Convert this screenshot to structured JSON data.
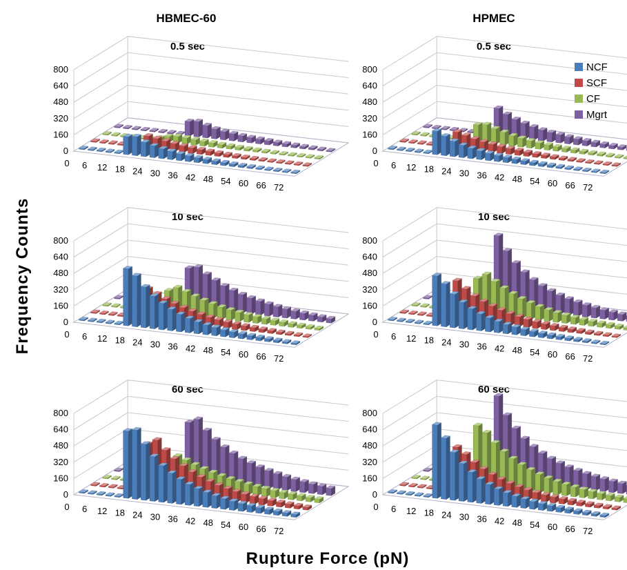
{
  "figure": {
    "column_titles": [
      "HBMEC-60",
      "HPMEC"
    ],
    "y_axis_label": "Frequency  Counts",
    "x_axis_label": "Rupture  Force  (pN)"
  },
  "series_colors": {
    "NCF": "#4a7ebb",
    "SCF": "#be4b48",
    "CF": "#98b954",
    "Mgrt": "#7d60a0"
  },
  "chart_data": [
    {
      "type": "bar",
      "projection": "3d-clustered",
      "title": "0.5 sec",
      "column": "HBMEC-60",
      "xlabel": "Rupture  Force  (pN)",
      "ylabel": "Frequency  Counts",
      "ylim": [
        0,
        800
      ],
      "yticks": [
        0,
        160,
        320,
        480,
        640,
        800
      ],
      "x_tick_labels": [
        "0",
        "6",
        "12",
        "18",
        "24",
        "30",
        "36",
        "42",
        "48",
        "54",
        "60",
        "66",
        "72"
      ],
      "x": [
        0,
        3,
        6,
        9,
        12,
        15,
        18,
        21,
        24,
        27,
        30,
        33,
        36,
        39,
        42,
        45,
        48,
        51,
        54,
        57,
        60,
        63,
        66,
        69,
        72
      ],
      "series": [
        {
          "name": "NCF",
          "values": [
            0,
            0,
            0,
            0,
            0,
            175,
            185,
            140,
            115,
            95,
            80,
            65,
            55,
            45,
            38,
            32,
            27,
            22,
            18,
            15,
            12,
            10,
            8,
            6,
            5
          ]
        },
        {
          "name": "SCF",
          "values": [
            0,
            0,
            0,
            0,
            0,
            0,
            120,
            105,
            90,
            75,
            62,
            52,
            44,
            37,
            31,
            26,
            22,
            18,
            15,
            12,
            10,
            8,
            6,
            5,
            4
          ]
        },
        {
          "name": "CF",
          "values": [
            0,
            0,
            0,
            0,
            0,
            0,
            30,
            55,
            65,
            60,
            52,
            45,
            39,
            33,
            28,
            24,
            20,
            17,
            14,
            12,
            10,
            8,
            6,
            5,
            4
          ]
        },
        {
          "name": "Mgrt",
          "values": [
            0,
            0,
            0,
            0,
            0,
            0,
            0,
            0,
            140,
            150,
            120,
            95,
            80,
            68,
            58,
            50,
            44,
            38,
            32,
            28,
            24,
            20,
            16,
            13,
            10
          ]
        }
      ],
      "legend": "none"
    },
    {
      "type": "bar",
      "projection": "3d-clustered",
      "title": "0.5 sec",
      "column": "HPMEC",
      "xlabel": "Rupture  Force  (pN)",
      "ylabel": "Frequency  Counts",
      "ylim": [
        0,
        800
      ],
      "yticks": [
        0,
        160,
        320,
        480,
        640,
        800
      ],
      "x_tick_labels": [
        "0",
        "6",
        "12",
        "18",
        "24",
        "30",
        "36",
        "42",
        "48",
        "54",
        "60",
        "66",
        "72"
      ],
      "x": [
        0,
        3,
        6,
        9,
        12,
        15,
        18,
        21,
        24,
        27,
        30,
        33,
        36,
        39,
        42,
        45,
        48,
        51,
        54,
        57,
        60,
        63,
        66,
        69,
        72
      ],
      "series": [
        {
          "name": "NCF",
          "values": [
            0,
            0,
            0,
            0,
            0,
            230,
            190,
            150,
            120,
            100,
            85,
            70,
            58,
            48,
            40,
            34,
            28,
            24,
            20,
            16,
            13,
            11,
            9,
            7,
            5
          ]
        },
        {
          "name": "SCF",
          "values": [
            0,
            0,
            0,
            0,
            0,
            0,
            160,
            135,
            110,
            92,
            78,
            65,
            55,
            46,
            38,
            32,
            27,
            22,
            18,
            15,
            12,
            10,
            8,
            6,
            5
          ]
        },
        {
          "name": "CF",
          "values": [
            0,
            0,
            0,
            0,
            0,
            0,
            0,
            170,
            180,
            150,
            125,
            100,
            85,
            70,
            58,
            48,
            40,
            34,
            28,
            23,
            19,
            16,
            13,
            10,
            8
          ]
        },
        {
          "name": "Mgrt",
          "values": [
            0,
            0,
            0,
            0,
            0,
            0,
            0,
            0,
            270,
            220,
            180,
            150,
            125,
            105,
            90,
            78,
            66,
            56,
            48,
            41,
            35,
            30,
            25,
            20,
            16
          ]
        }
      ],
      "legend": "top-right"
    },
    {
      "type": "bar",
      "projection": "3d-clustered",
      "title": "10 sec",
      "column": "HBMEC-60",
      "xlabel": "Rupture  Force  (pN)",
      "ylabel": "Frequency  Counts",
      "ylim": [
        0,
        800
      ],
      "yticks": [
        0,
        160,
        320,
        480,
        640,
        800
      ],
      "x_tick_labels": [
        "0",
        "6",
        "12",
        "18",
        "24",
        "30",
        "36",
        "42",
        "48",
        "54",
        "60",
        "66",
        "72"
      ],
      "x": [
        0,
        3,
        6,
        9,
        12,
        15,
        18,
        21,
        24,
        27,
        30,
        33,
        36,
        39,
        42,
        45,
        48,
        51,
        54,
        57,
        60,
        63,
        66,
        69,
        72
      ],
      "series": [
        {
          "name": "NCF",
          "values": [
            0,
            0,
            0,
            0,
            0,
            560,
            500,
            400,
            320,
            260,
            210,
            170,
            140,
            115,
            95,
            80,
            66,
            55,
            46,
            38,
            31,
            26,
            21,
            17,
            14
          ]
        },
        {
          "name": "SCF",
          "values": [
            0,
            0,
            0,
            0,
            0,
            0,
            300,
            260,
            220,
            185,
            155,
            130,
            108,
            90,
            75,
            62,
            52,
            43,
            36,
            30,
            25,
            20,
            16,
            13,
            10
          ]
        },
        {
          "name": "CF",
          "values": [
            0,
            0,
            0,
            0,
            0,
            0,
            0,
            220,
            260,
            230,
            195,
            165,
            140,
            118,
            100,
            85,
            72,
            61,
            52,
            44,
            37,
            31,
            26,
            21,
            17
          ]
        },
        {
          "name": "Mgrt",
          "values": [
            0,
            0,
            0,
            0,
            0,
            0,
            0,
            0,
            380,
            400,
            340,
            290,
            245,
            210,
            180,
            155,
            134,
            116,
            100,
            87,
            75,
            65,
            56,
            48,
            41
          ]
        }
      ],
      "legend": "none"
    },
    {
      "type": "bar",
      "projection": "3d-clustered",
      "title": "10 sec",
      "column": "HPMEC",
      "xlabel": "Rupture  Force  (pN)",
      "ylabel": "Frequency  Counts",
      "ylim": [
        0,
        800
      ],
      "yticks": [
        0,
        160,
        320,
        480,
        640,
        800
      ],
      "x_tick_labels": [
        "0",
        "6",
        "12",
        "18",
        "24",
        "30",
        "36",
        "42",
        "48",
        "54",
        "60",
        "66",
        "72"
      ],
      "x": [
        0,
        3,
        6,
        9,
        12,
        15,
        18,
        21,
        24,
        27,
        30,
        33,
        36,
        39,
        42,
        45,
        48,
        51,
        54,
        57,
        60,
        63,
        66,
        69,
        72
      ],
      "series": [
        {
          "name": "NCF",
          "values": [
            0,
            0,
            0,
            0,
            0,
            490,
            420,
            330,
            260,
            205,
            165,
            135,
            110,
            90,
            74,
            61,
            50,
            41,
            34,
            28,
            23,
            19,
            15,
            12,
            10
          ]
        },
        {
          "name": "SCF",
          "values": [
            0,
            0,
            0,
            0,
            0,
            0,
            380,
            310,
            250,
            205,
            170,
            140,
            115,
            95,
            78,
            64,
            53,
            44,
            36,
            30,
            25,
            20,
            16,
            13,
            10
          ]
        },
        {
          "name": "CF",
          "values": [
            0,
            0,
            0,
            0,
            0,
            0,
            0,
            340,
            390,
            330,
            275,
            230,
            190,
            158,
            132,
            110,
            92,
            77,
            64,
            54,
            45,
            38,
            32,
            26,
            21
          ]
        },
        {
          "name": "Mgrt",
          "values": [
            0,
            0,
            0,
            0,
            0,
            0,
            0,
            0,
            700,
            560,
            450,
            370,
            305,
            255,
            215,
            182,
            156,
            134,
            115,
            99,
            86,
            74,
            64,
            55,
            47
          ]
        }
      ],
      "legend": "none"
    },
    {
      "type": "bar",
      "projection": "3d-clustered",
      "title": "60 sec",
      "column": "HBMEC-60",
      "xlabel": "Rupture  Force  (pN)",
      "ylabel": "Frequency  Counts",
      "ylim": [
        0,
        800
      ],
      "yticks": [
        0,
        160,
        320,
        480,
        640,
        800
      ],
      "x_tick_labels": [
        "0",
        "6",
        "12",
        "18",
        "24",
        "30",
        "36",
        "42",
        "48",
        "54",
        "60",
        "66",
        "72"
      ],
      "x": [
        0,
        3,
        6,
        9,
        12,
        15,
        18,
        21,
        24,
        27,
        30,
        33,
        36,
        39,
        42,
        45,
        48,
        51,
        54,
        57,
        60,
        63,
        66,
        69,
        72
      ],
      "series": [
        {
          "name": "NCF",
          "values": [
            0,
            0,
            0,
            0,
            0,
            660,
            680,
            550,
            440,
            360,
            295,
            245,
            205,
            172,
            145,
            122,
            103,
            87,
            74,
            63,
            53,
            45,
            38,
            32,
            27
          ]
        },
        {
          "name": "SCF",
          "values": [
            0,
            0,
            0,
            0,
            0,
            0,
            470,
            520,
            430,
            355,
            295,
            245,
            205,
            172,
            144,
            121,
            102,
            86,
            73,
            62,
            52,
            44,
            37,
            31,
            26
          ]
        },
        {
          "name": "CF",
          "values": [
            0,
            0,
            0,
            0,
            0,
            0,
            0,
            250,
            300,
            270,
            235,
            205,
            178,
            155,
            135,
            118,
            103,
            90,
            79,
            69,
            60,
            53,
            46,
            40,
            35
          ]
        },
        {
          "name": "Mgrt",
          "values": [
            0,
            0,
            0,
            0,
            0,
            0,
            0,
            0,
            560,
            600,
            500,
            420,
            355,
            305,
            262,
            228,
            198,
            173,
            152,
            133,
            117,
            103,
            91,
            80,
            70
          ]
        }
      ],
      "legend": "none"
    },
    {
      "type": "bar",
      "projection": "3d-clustered",
      "title": "60 sec",
      "column": "HPMEC",
      "xlabel": "Rupture  Force  (pN)",
      "ylabel": "Frequency  Counts",
      "ylim": [
        0,
        800
      ],
      "yticks": [
        0,
        160,
        320,
        480,
        640,
        800
      ],
      "x_tick_labels": [
        "0",
        "6",
        "12",
        "18",
        "24",
        "30",
        "36",
        "42",
        "48",
        "54",
        "60",
        "66",
        "72"
      ],
      "x": [
        0,
        3,
        6,
        9,
        12,
        15,
        18,
        21,
        24,
        27,
        30,
        33,
        36,
        39,
        42,
        45,
        48,
        51,
        54,
        57,
        60,
        63,
        66,
        69,
        72
      ],
      "series": [
        {
          "name": "NCF",
          "values": [
            0,
            0,
            0,
            0,
            0,
            720,
            600,
            470,
            370,
            295,
            238,
            194,
            159,
            131,
            108,
            90,
            75,
            62,
            52,
            43,
            36,
            30,
            25,
            21,
            17
          ]
        },
        {
          "name": "SCF",
          "values": [
            0,
            0,
            0,
            0,
            0,
            0,
            440,
            380,
            310,
            255,
            210,
            173,
            143,
            118,
            98,
            82,
            68,
            57,
            48,
            40,
            33,
            28,
            23,
            19,
            16
          ]
        },
        {
          "name": "CF",
          "values": [
            0,
            0,
            0,
            0,
            0,
            0,
            0,
            590,
            530,
            440,
            365,
            305,
            255,
            214,
            180,
            152,
            129,
            110,
            94,
            80,
            68,
            58,
            50,
            43,
            37
          ]
        },
        {
          "name": "Mgrt",
          "values": [
            0,
            0,
            0,
            0,
            0,
            0,
            0,
            0,
            820,
            640,
            520,
            430,
            360,
            305,
            262,
            227,
            198,
            174,
            153,
            136,
            121,
            108,
            97,
            87,
            78
          ]
        }
      ],
      "legend": "none"
    }
  ]
}
